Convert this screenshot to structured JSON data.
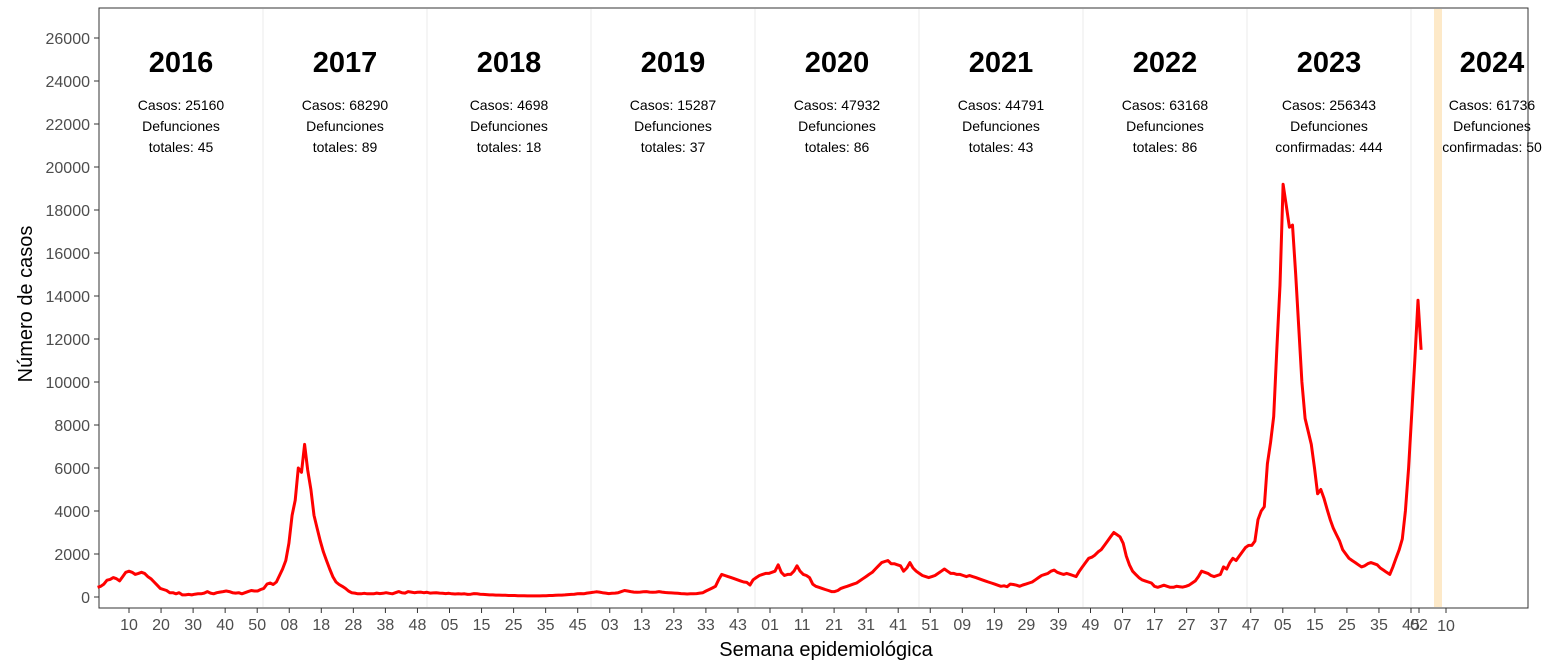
{
  "chart_data": {
    "type": "line",
    "xlabel": "Semana epidemiológica",
    "ylabel": "Número de casos",
    "ylim": [
      0,
      27000
    ],
    "yticks": [
      0,
      2000,
      4000,
      6000,
      8000,
      10000,
      12000,
      14000,
      16000,
      18000,
      20000,
      22000,
      24000,
      26000
    ],
    "yticks_text": [
      "0",
      "2000",
      "4000",
      "6000",
      "8000",
      "10000",
      "12000",
      "14000",
      "16000",
      "18000",
      "20000",
      "22000",
      "24000",
      "26000"
    ],
    "grid": "vertical year separators",
    "line_color": "#ff0000",
    "highlight_color": "#fde9c8",
    "x_tick_labels": [
      "10",
      "20",
      "30",
      "40",
      "50",
      "08",
      "18",
      "28",
      "38",
      "48",
      "05",
      "15",
      "25",
      "35",
      "45",
      "03",
      "13",
      "23",
      "33",
      "43",
      "01",
      "11",
      "21",
      "31",
      "41",
      "51",
      "09",
      "19",
      "29",
      "39",
      "49",
      "07",
      "17",
      "27",
      "37",
      "47",
      "05",
      "15",
      "25",
      "35",
      "45",
      "02",
      "10"
    ],
    "years": [
      {
        "year": "2016",
        "line1": "Casos: 25160",
        "line2": "Defunciones",
        "line3": "totales: 45"
      },
      {
        "year": "2017",
        "line1": "Casos: 68290",
        "line2": "Defunciones",
        "line3": "totales: 89"
      },
      {
        "year": "2018",
        "line1": "Casos: 4698",
        "line2": "Defunciones",
        "line3": "totales: 18"
      },
      {
        "year": "2019",
        "line1": "Casos: 15287",
        "line2": "Defunciones",
        "line3": "totales: 37"
      },
      {
        "year": "2020",
        "line1": "Casos: 47932",
        "line2": "Defunciones",
        "line3": "totales: 86"
      },
      {
        "year": "2021",
        "line1": "Casos: 44791",
        "line2": "Defunciones",
        "line3": "totales: 43"
      },
      {
        "year": "2022",
        "line1": "Casos: 63168",
        "line2": "Defunciones",
        "line3": "totales: 86"
      },
      {
        "year": "2023",
        "line1": "Casos: 256343",
        "line2": "Defunciones",
        "line3": "confirmadas: 444"
      },
      {
        "year": "2024",
        "line1": "Casos: 61736",
        "line2": "Defunciones",
        "line3": "confirmadas: 50"
      }
    ],
    "series": [
      {
        "weeks_2016_to_2024": [
          450,
          500,
          600,
          780,
          820,
          900,
          850,
          750,
          950,
          1150,
          1200,
          1150,
          1050,
          1100,
          1150,
          1100,
          950,
          850,
          700,
          550,
          400,
          350,
          300,
          200,
          200,
          150,
          200,
          100,
          100,
          120,
          100,
          130,
          150,
          150,
          180,
          250,
          180,
          150,
          200,
          230,
          250,
          280,
          250,
          200,
          180,
          200,
          150,
          200,
          250,
          300,
          280,
          280,
          350,
          400,
          600,
          650,
          580,
          700,
          1000,
          1300,
          1700,
          2500,
          3800,
          4500,
          6000,
          5800,
          7100,
          5900,
          5000,
          3800,
          3200,
          2600,
          2100,
          1700,
          1300,
          950,
          700,
          580,
          500,
          400,
          280,
          200,
          180,
          150,
          150,
          170,
          150,
          150,
          150,
          180,
          160,
          170,
          200,
          170,
          150,
          200,
          250,
          200,
          180,
          250,
          230,
          200,
          220,
          230,
          200,
          220,
          180,
          190,
          200,
          180,
          170,
          160,
          170,
          150,
          140,
          150,
          140,
          150,
          120,
          130,
          160,
          150,
          130,
          120,
          110,
          100,
          100,
          90,
          90,
          80,
          80,
          70,
          70,
          70,
          60,
          60,
          60,
          50,
          50,
          50,
          50,
          50,
          60,
          60,
          70,
          70,
          80,
          90,
          90,
          100,
          110,
          120,
          130,
          150,
          160,
          150,
          180,
          200,
          220,
          240,
          230,
          200,
          180,
          160,
          170,
          180,
          200,
          250,
          300,
          280,
          250,
          230,
          220,
          230,
          240,
          250,
          230,
          220,
          230,
          250,
          230,
          210,
          200,
          190,
          180,
          170,
          160,
          150,
          140,
          150,
          150,
          160,
          180,
          200,
          280,
          350,
          420,
          500,
          800,
          1050,
          1000,
          950,
          900,
          850,
          800,
          750,
          700,
          680,
          560,
          800,
          900,
          1000,
          1050,
          1100,
          1100,
          1150,
          1200,
          1500,
          1150,
          1000,
          1050,
          1050,
          1200,
          1450,
          1200,
          1050,
          1000,
          900,
          600,
          500,
          450,
          400,
          350,
          300,
          250,
          250,
          300,
          400,
          450,
          500,
          550,
          600,
          650,
          750,
          850,
          950,
          1050,
          1150,
          1300,
          1450,
          1600,
          1650,
          1700,
          1550,
          1550,
          1500,
          1450,
          1200,
          1350,
          1600,
          1350,
          1200,
          1100,
          1000,
          950,
          900,
          950,
          1000,
          1100,
          1200,
          1300,
          1200,
          1100,
          1100,
          1050,
          1050,
          1000,
          950,
          1000,
          950,
          900,
          850,
          800,
          750,
          700,
          650,
          600,
          550,
          500,
          520,
          480,
          600,
          580,
          550,
          500,
          560,
          600,
          650,
          700,
          800,
          900,
          1000,
          1050,
          1100,
          1200,
          1250,
          1150,
          1100,
          1050,
          1100,
          1050,
          1000,
          950,
          1200,
          1400,
          1600,
          1800,
          1850,
          1950,
          2100,
          2200,
          2400,
          2600,
          2800,
          3000,
          2900,
          2800,
          2500,
          1900,
          1500,
          1200,
          1050,
          900,
          800,
          750,
          700,
          650,
          500,
          450,
          500,
          550,
          500,
          450,
          450,
          500,
          480,
          460,
          500,
          550,
          650,
          750,
          950,
          1200,
          1150,
          1100,
          1000,
          950,
          1000,
          1050,
          1400,
          1300,
          1600,
          1800,
          1700,
          1900,
          2100,
          2300,
          2400,
          2400,
          2600,
          3600,
          4000,
          4200,
          6200,
          7200,
          8400,
          11500,
          14500,
          19200,
          18200,
          17200,
          17300,
          15000,
          12500,
          10000,
          8300,
          7700,
          7100,
          6000,
          4800,
          5000,
          4600,
          4100,
          3600,
          3200,
          2900,
          2600,
          2200,
          2000,
          1800,
          1700,
          1600,
          1500,
          1400,
          1450,
          1550,
          1600,
          1550,
          1500,
          1350,
          1250,
          1150,
          1050,
          1400,
          1800,
          2200,
          2700,
          4000,
          6000,
          8500,
          11000,
          13800,
          11500
        ]
      }
    ]
  }
}
